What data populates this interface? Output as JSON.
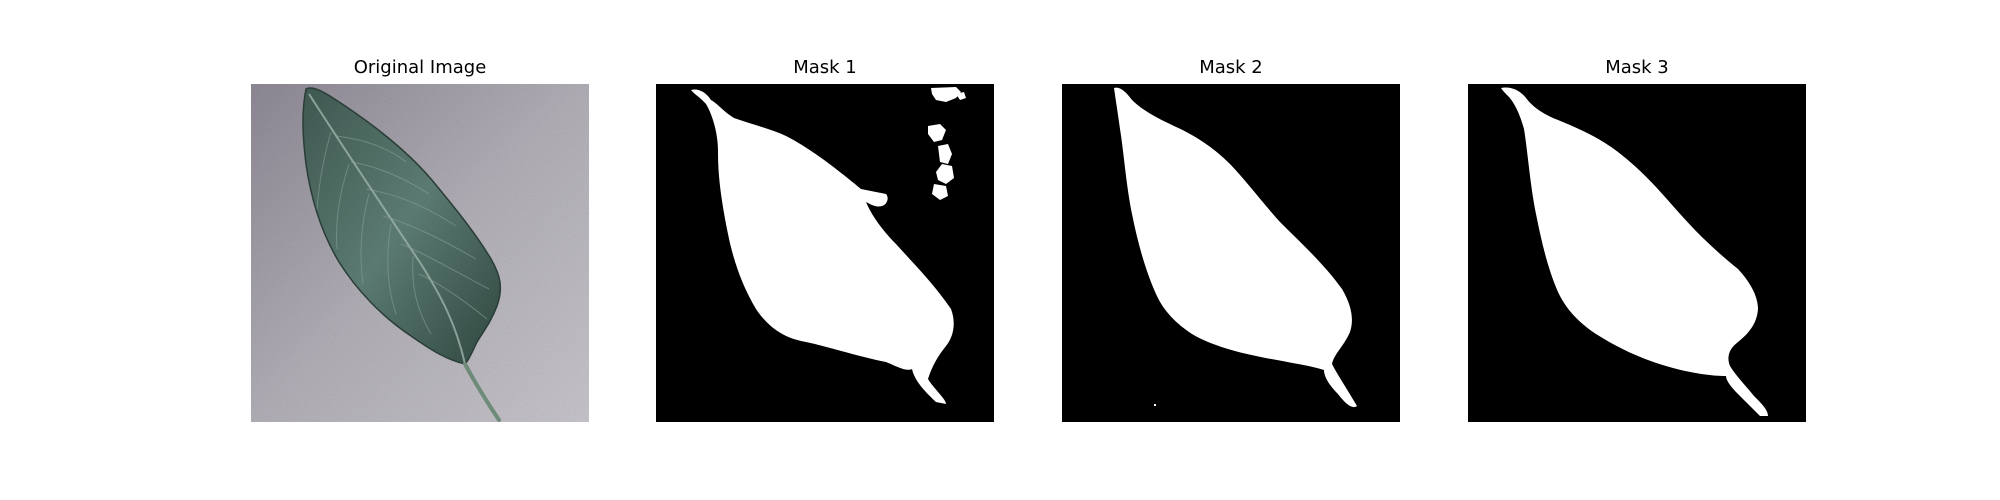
{
  "figure": {
    "panels": [
      {
        "title": "Original Image",
        "kind": "photo",
        "content": "leaf"
      },
      {
        "title": "Mask 1",
        "kind": "mask",
        "content": "leaf-mask"
      },
      {
        "title": "Mask 2",
        "kind": "mask",
        "content": "leaf-mask"
      },
      {
        "title": "Mask 3",
        "kind": "mask",
        "content": "leaf-mask"
      }
    ],
    "colors": {
      "background": "#ffffff",
      "mask_background": "#000000",
      "mask_foreground": "#ffffff",
      "photo_background": "#a9a6ae",
      "leaf": "#4f6b63"
    }
  }
}
